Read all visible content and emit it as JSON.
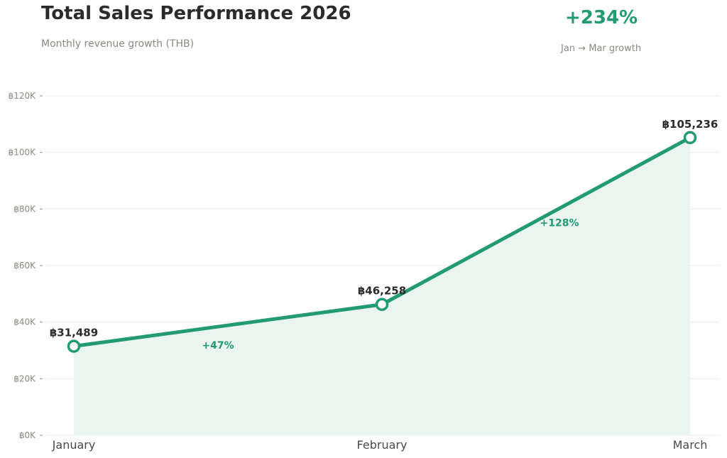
{
  "header": {
    "title": "Total Sales Performance 2026",
    "subtitle": "Monthly revenue growth (THB)"
  },
  "kpi": {
    "value": "+234%",
    "label": "Jan → Mar growth"
  },
  "colors": {
    "accent": "#229a72",
    "fill": "#eaf5f0",
    "grid": "#ececec"
  },
  "chart_data": {
    "type": "line",
    "categories": [
      "January",
      "February",
      "March"
    ],
    "values": [
      31489,
      46258,
      105236
    ],
    "value_labels": [
      "฿31,489",
      "฿46,258",
      "฿105,236"
    ],
    "growth_labels": [
      "+47%",
      "+128%"
    ],
    "y_ticks": [
      0,
      20000,
      40000,
      60000,
      80000,
      100000,
      120000
    ],
    "y_tick_labels": [
      "฿0K",
      "฿20K",
      "฿40K",
      "฿60K",
      "฿80K",
      "฿100K",
      "฿120K"
    ],
    "ylim": [
      0,
      120000
    ],
    "grid": true,
    "area_fill": true
  }
}
